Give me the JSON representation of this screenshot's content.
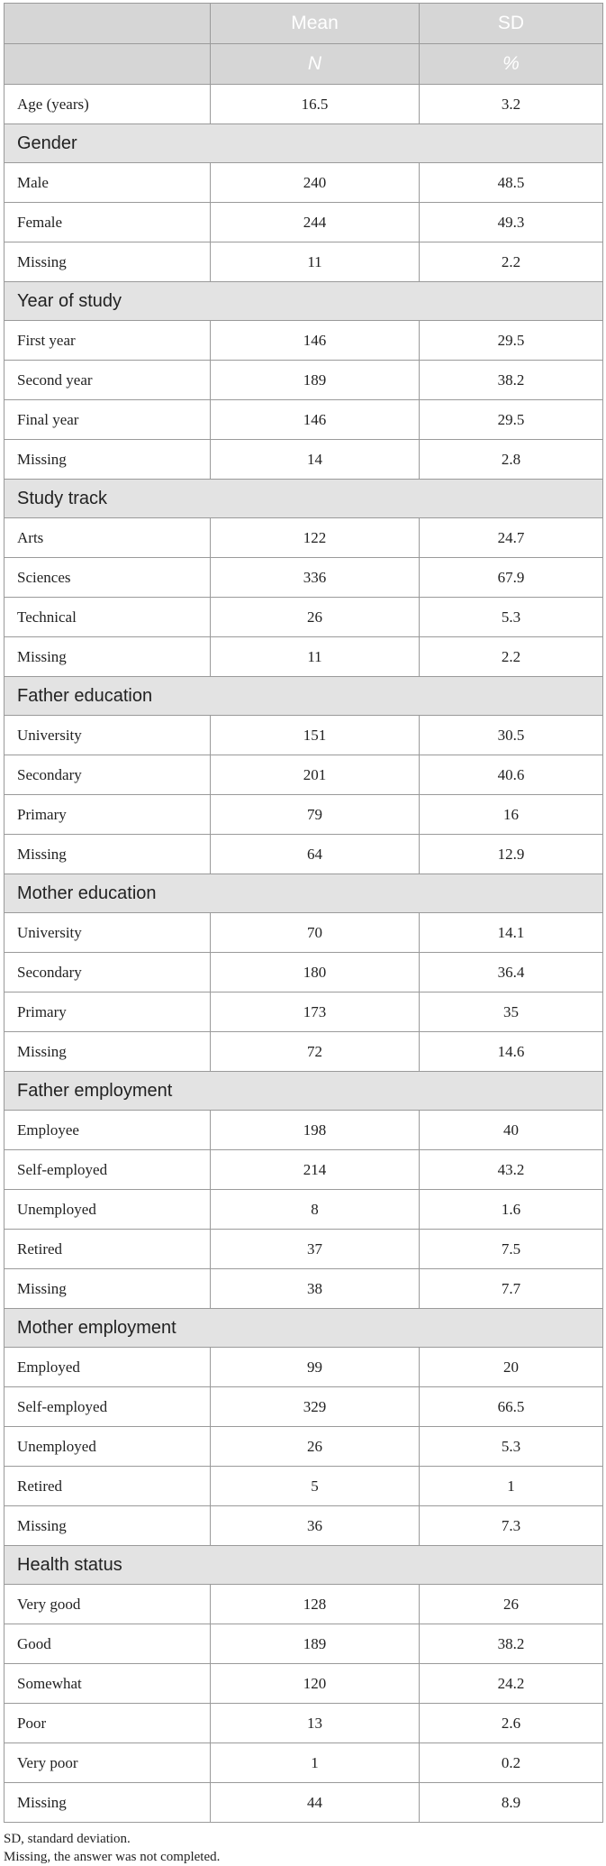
{
  "header": {
    "row1": [
      "",
      "Mean",
      "SD"
    ],
    "row2": [
      "",
      "N",
      "%"
    ]
  },
  "age": {
    "label": "Age (years)",
    "mean": "16.5",
    "sd": "3.2"
  },
  "sections": [
    {
      "title": "Gender",
      "rows": [
        {
          "label": "Male",
          "n": "240",
          "pct": "48.5"
        },
        {
          "label": "Female",
          "n": "244",
          "pct": "49.3"
        },
        {
          "label": "Missing",
          "n": "11",
          "pct": "2.2"
        }
      ]
    },
    {
      "title": "Year of study",
      "rows": [
        {
          "label": "First year",
          "n": "146",
          "pct": "29.5"
        },
        {
          "label": "Second year",
          "n": "189",
          "pct": "38.2"
        },
        {
          "label": "Final year",
          "n": "146",
          "pct": "29.5"
        },
        {
          "label": "Missing",
          "n": "14",
          "pct": "2.8"
        }
      ]
    },
    {
      "title": "Study track",
      "rows": [
        {
          "label": "Arts",
          "n": "122",
          "pct": "24.7"
        },
        {
          "label": "Sciences",
          "n": "336",
          "pct": "67.9"
        },
        {
          "label": "Technical",
          "n": "26",
          "pct": "5.3"
        },
        {
          "label": "Missing",
          "n": "11",
          "pct": "2.2"
        }
      ]
    },
    {
      "title": "Father education",
      "rows": [
        {
          "label": "University",
          "n": "151",
          "pct": "30.5"
        },
        {
          "label": "Secondary",
          "n": "201",
          "pct": "40.6"
        },
        {
          "label": "Primary",
          "n": "79",
          "pct": "16"
        },
        {
          "label": "Missing",
          "n": "64",
          "pct": "12.9"
        }
      ]
    },
    {
      "title": "Mother education",
      "rows": [
        {
          "label": "University",
          "n": "70",
          "pct": "14.1"
        },
        {
          "label": "Secondary",
          "n": "180",
          "pct": "36.4"
        },
        {
          "label": "Primary",
          "n": "173",
          "pct": "35"
        },
        {
          "label": "Missing",
          "n": "72",
          "pct": "14.6"
        }
      ]
    },
    {
      "title": "Father employment",
      "rows": [
        {
          "label": "Employee",
          "n": "198",
          "pct": "40"
        },
        {
          "label": "Self-employed",
          "n": "214",
          "pct": "43.2"
        },
        {
          "label": "Unemployed",
          "n": "8",
          "pct": "1.6"
        },
        {
          "label": "Retired",
          "n": "37",
          "pct": "7.5"
        },
        {
          "label": "Missing",
          "n": "38",
          "pct": "7.7"
        }
      ]
    },
    {
      "title": "Mother employment",
      "rows": [
        {
          "label": "Employed",
          "n": "99",
          "pct": "20"
        },
        {
          "label": "Self-employed",
          "n": "329",
          "pct": "66.5"
        },
        {
          "label": "Unemployed",
          "n": "26",
          "pct": "5.3"
        },
        {
          "label": "Retired",
          "n": "5",
          "pct": "1"
        },
        {
          "label": "Missing",
          "n": "36",
          "pct": "7.3"
        }
      ]
    },
    {
      "title": "Health status",
      "rows": [
        {
          "label": "Very good",
          "n": "128",
          "pct": "26"
        },
        {
          "label": "Good",
          "n": "189",
          "pct": "38.2"
        },
        {
          "label": "Somewhat",
          "n": "120",
          "pct": "24.2"
        },
        {
          "label": "Poor",
          "n": "13",
          "pct": "2.6"
        },
        {
          "label": "Very poor",
          "n": "1",
          "pct": "0.2"
        },
        {
          "label": "Missing",
          "n": "44",
          "pct": "8.9"
        }
      ]
    }
  ],
  "footnotes": [
    "SD, standard deviation.",
    "Missing, the answer was not completed."
  ]
}
